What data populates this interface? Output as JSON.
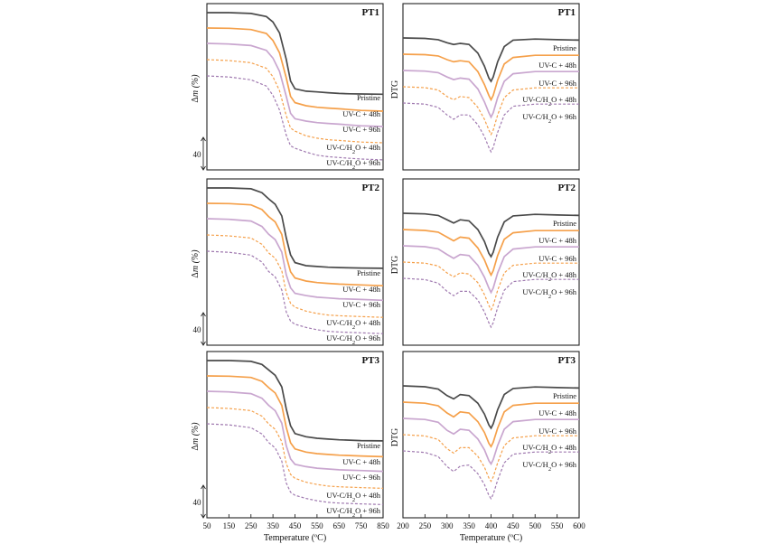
{
  "legend_series": [
    {
      "id": "pristine",
      "label_main": "Pristine",
      "label_sub": "",
      "label_tail": "",
      "color": "#4a4a4a",
      "dash": "solid"
    },
    {
      "id": "uvc48",
      "label_main": "UV-C + 48h",
      "label_sub": "",
      "label_tail": "",
      "color": "#f5a04a",
      "dash": "solid"
    },
    {
      "id": "uvc96",
      "label_main": "UV-C + 96h",
      "label_sub": "",
      "label_tail": "",
      "color": "#c9a6cf",
      "dash": "solid"
    },
    {
      "id": "uvch2o48",
      "label_main": "UV-C/H",
      "label_sub": "2",
      "label_tail": "O + 48h",
      "color": "#f5a04a",
      "dash": "dashed"
    },
    {
      "id": "uvch2o96",
      "label_main": "UV-C/H",
      "label_sub": "2",
      "label_tail": "O + 96h",
      "color": "#a07ab0",
      "dash": "dashed"
    }
  ],
  "tga_axis": {
    "ylabel_delta": "Δ",
    "ylabel_rest": "m (%)",
    "scale_bar_value": "40",
    "xlabel": "Temperature (ºC)",
    "xticks": [
      50,
      150,
      250,
      350,
      450,
      550,
      650,
      750,
      850
    ],
    "xlim": [
      50,
      850
    ]
  },
  "dtg_axis": {
    "ylabel": "DTG",
    "xlabel": "Temperature (ºC)",
    "xticks": [
      200,
      250,
      300,
      350,
      400,
      450,
      500,
      550,
      600
    ],
    "xlim": [
      200,
      600
    ]
  },
  "chart_data": [
    {
      "type": "line",
      "method": "TGA",
      "title": "PT1",
      "x": [
        50,
        150,
        250,
        320,
        350,
        380,
        410,
        430,
        450,
        500,
        550,
        600,
        650,
        700,
        750,
        850
      ],
      "series": [
        {
          "name": "Pristine",
          "values": [
            100,
            100,
            99.5,
            97.5,
            94,
            87,
            70,
            56,
            51,
            49.5,
            49,
            48.5,
            48,
            47.8,
            47.7,
            47.5
          ]
        },
        {
          "name": "UV-C + 48h",
          "values": [
            100,
            99.8,
            99,
            96.5,
            92,
            84,
            68,
            56,
            52,
            50,
            49,
            48.5,
            48,
            47.5,
            47,
            46.5
          ]
        },
        {
          "name": "UV-C + 96h",
          "values": [
            100,
            99.6,
            98.6,
            95.5,
            90.5,
            82,
            66,
            55,
            51.5,
            50,
            49,
            48.5,
            48,
            47.5,
            47,
            46.5
          ]
        },
        {
          "name": "UV-C/H2O + 48h",
          "values": [
            100,
            99.4,
            98,
            94.5,
            89,
            80,
            64,
            56,
            54,
            51,
            49.5,
            48.5,
            48,
            47.5,
            47,
            46.5
          ]
        },
        {
          "name": "UV-C/H2O + 96h",
          "values": [
            100,
            99.3,
            97.5,
            93.5,
            87.5,
            78,
            62,
            55,
            53.5,
            51,
            49,
            48,
            47.5,
            47,
            46.5,
            46
          ]
        }
      ]
    },
    {
      "type": "line",
      "method": "DTG",
      "title": "PT1",
      "x": [
        200,
        250,
        280,
        300,
        315,
        330,
        350,
        370,
        385,
        395,
        400,
        405,
        415,
        430,
        450,
        500,
        550,
        600
      ],
      "series": [
        {
          "name": "Pristine",
          "values": [
            0,
            -0.02,
            -0.08,
            -0.22,
            -0.3,
            -0.25,
            -0.3,
            -0.7,
            -1.3,
            -1.85,
            -2,
            -1.8,
            -1.1,
            -0.4,
            -0.1,
            -0.05,
            -0.08,
            -0.1
          ]
        },
        {
          "name": "UV-C + 48h",
          "values": [
            0,
            -0.02,
            -0.08,
            -0.25,
            -0.35,
            -0.3,
            -0.35,
            -0.8,
            -1.4,
            -1.9,
            -2.1,
            -1.9,
            -1.2,
            -0.45,
            -0.15,
            -0.05,
            -0.05,
            -0.05
          ]
        },
        {
          "name": "UV-C + 96h",
          "values": [
            0,
            -0.03,
            -0.1,
            -0.3,
            -0.42,
            -0.35,
            -0.4,
            -0.85,
            -1.45,
            -1.95,
            -2.15,
            -1.95,
            -1.25,
            -0.5,
            -0.15,
            -0.05,
            -0.05,
            -0.05
          ]
        },
        {
          "name": "UV-C/H2O + 48h",
          "values": [
            0,
            -0.04,
            -0.15,
            -0.45,
            -0.6,
            -0.45,
            -0.5,
            -0.95,
            -1.5,
            -2,
            -2.2,
            -2,
            -1.3,
            -0.5,
            -0.15,
            -0.05,
            -0.05,
            -0.05
          ]
        },
        {
          "name": "UV-C/H2O + 96h",
          "values": [
            0,
            -0.05,
            -0.2,
            -0.55,
            -0.75,
            -0.55,
            -0.55,
            -1,
            -1.55,
            -2.05,
            -2.25,
            -2.05,
            -1.35,
            -0.55,
            -0.15,
            -0.05,
            -0.05,
            -0.05
          ]
        }
      ]
    },
    {
      "type": "line",
      "method": "TGA",
      "title": "PT2",
      "x": [
        50,
        150,
        250,
        300,
        330,
        360,
        390,
        410,
        430,
        450,
        500,
        550,
        600,
        650,
        750,
        850
      ],
      "series": [
        {
          "name": "Pristine",
          "values": [
            100,
            100,
            99.5,
            97,
            93,
            89.5,
            82,
            68,
            57,
            52,
            50,
            49.5,
            49,
            48.8,
            48.5,
            48.3
          ]
        },
        {
          "name": "UV-C + 48h",
          "values": [
            100,
            99.8,
            99,
            96,
            91.5,
            88,
            80,
            66,
            56,
            52,
            50,
            49,
            48.5,
            48,
            47.5,
            47
          ]
        },
        {
          "name": "UV-C + 96h",
          "values": [
            100,
            99.6,
            98.5,
            95,
            90,
            86.5,
            78.5,
            64,
            55.5,
            52,
            50.5,
            49.5,
            49,
            48.5,
            48,
            47.5
          ]
        },
        {
          "name": "UV-C/H2O + 48h",
          "values": [
            100,
            99.4,
            98,
            94,
            88.5,
            85,
            77,
            63,
            56,
            53.5,
            51,
            49.5,
            48.5,
            48,
            47.5,
            47
          ]
        },
        {
          "name": "UV-C/H2O + 96h",
          "values": [
            100,
            99.3,
            97.5,
            93,
            87,
            83.5,
            75,
            61,
            55,
            53,
            51,
            49.5,
            48.5,
            48,
            47.5,
            47
          ]
        }
      ]
    },
    {
      "type": "line",
      "method": "DTG",
      "title": "PT2",
      "x": [
        200,
        250,
        280,
        300,
        315,
        330,
        350,
        370,
        385,
        395,
        400,
        405,
        415,
        430,
        450,
        500,
        550,
        600
      ],
      "series": [
        {
          "name": "Pristine",
          "values": [
            0,
            -0.03,
            -0.1,
            -0.3,
            -0.45,
            -0.3,
            -0.35,
            -0.75,
            -1.3,
            -1.85,
            -2,
            -1.8,
            -1.1,
            -0.4,
            -0.12,
            -0.05,
            -0.08,
            -0.1
          ]
        },
        {
          "name": "UV-C + 48h",
          "values": [
            0,
            -0.04,
            -0.12,
            -0.35,
            -0.52,
            -0.35,
            -0.4,
            -0.85,
            -1.4,
            -1.9,
            -2.1,
            -1.9,
            -1.2,
            -0.45,
            -0.15,
            -0.05,
            -0.05,
            -0.05
          ]
        },
        {
          "name": "UV-C + 96h",
          "values": [
            0,
            -0.04,
            -0.14,
            -0.4,
            -0.58,
            -0.4,
            -0.45,
            -0.9,
            -1.45,
            -1.95,
            -2.15,
            -1.95,
            -1.25,
            -0.5,
            -0.15,
            -0.05,
            -0.05,
            -0.05
          ]
        },
        {
          "name": "UV-C/H2O + 48h",
          "values": [
            0,
            -0.05,
            -0.18,
            -0.5,
            -0.68,
            -0.5,
            -0.55,
            -0.95,
            -1.5,
            -2,
            -2.2,
            -2,
            -1.3,
            -0.5,
            -0.15,
            -0.05,
            -0.05,
            -0.05
          ]
        },
        {
          "name": "UV-C/H2O + 96h",
          "values": [
            0,
            -0.06,
            -0.22,
            -0.6,
            -0.8,
            -0.6,
            -0.6,
            -1,
            -1.55,
            -2.05,
            -2.25,
            -2.05,
            -1.35,
            -0.55,
            -0.15,
            -0.05,
            -0.05,
            -0.05
          ]
        }
      ]
    },
    {
      "type": "line",
      "method": "TGA",
      "title": "PT3",
      "x": [
        50,
        150,
        250,
        300,
        330,
        360,
        390,
        410,
        430,
        450,
        500,
        550,
        600,
        650,
        750,
        850
      ],
      "series": [
        {
          "name": "Pristine",
          "values": [
            100,
            100,
            99.5,
            97.5,
            94,
            90.5,
            83,
            69,
            58,
            53,
            51,
            50,
            49.5,
            49,
            48.5,
            48.3
          ]
        },
        {
          "name": "UV-C + 48h",
          "values": [
            100,
            99.8,
            99,
            96.5,
            92.5,
            89,
            81,
            67,
            57,
            53,
            51,
            50,
            49.5,
            49,
            48.5,
            48
          ]
        },
        {
          "name": "UV-C + 96h",
          "values": [
            100,
            99.6,
            98.5,
            95.5,
            91,
            87.5,
            79.5,
            65,
            56.5,
            53,
            51.5,
            50.5,
            50,
            49.5,
            49,
            48.5
          ]
        },
        {
          "name": "UV-C/H2O + 48h",
          "values": [
            100,
            99.4,
            98,
            94.5,
            89.5,
            86,
            78,
            64,
            57,
            54.5,
            52,
            50.5,
            49.5,
            49,
            48.5,
            48
          ]
        },
        {
          "name": "UV-C/H2O + 96h",
          "values": [
            100,
            99.3,
            97.5,
            93.5,
            88,
            84.5,
            76,
            62,
            56,
            54,
            52,
            50.5,
            49.5,
            49,
            48.5,
            48
          ]
        }
      ]
    },
    {
      "type": "line",
      "method": "DTG",
      "title": "PT3",
      "x": [
        200,
        250,
        280,
        300,
        315,
        330,
        350,
        370,
        385,
        395,
        400,
        405,
        415,
        430,
        450,
        500,
        550,
        600
      ],
      "series": [
        {
          "name": "Pristine",
          "values": [
            0,
            -0.04,
            -0.15,
            -0.45,
            -0.6,
            -0.4,
            -0.45,
            -0.8,
            -1.3,
            -1.8,
            -1.95,
            -1.75,
            -1.1,
            -0.4,
            -0.12,
            -0.05,
            -0.08,
            -0.1
          ]
        },
        {
          "name": "UV-C + 48h",
          "values": [
            0,
            -0.05,
            -0.17,
            -0.5,
            -0.68,
            -0.45,
            -0.5,
            -0.9,
            -1.4,
            -1.9,
            -2.05,
            -1.85,
            -1.2,
            -0.45,
            -0.15,
            -0.05,
            -0.05,
            -0.05
          ]
        },
        {
          "name": "UV-C + 96h",
          "values": [
            0,
            -0.05,
            -0.18,
            -0.55,
            -0.72,
            -0.5,
            -0.55,
            -0.95,
            -1.45,
            -1.95,
            -2.1,
            -1.9,
            -1.25,
            -0.5,
            -0.15,
            -0.05,
            -0.05,
            -0.05
          ]
        },
        {
          "name": "UV-C/H2O + 48h",
          "values": [
            0,
            -0.06,
            -0.22,
            -0.65,
            -0.85,
            -0.6,
            -0.6,
            -1,
            -1.5,
            -2,
            -2.15,
            -1.95,
            -1.3,
            -0.5,
            -0.15,
            -0.05,
            -0.05,
            -0.05
          ]
        },
        {
          "name": "UV-C/H2O + 96h",
          "values": [
            0,
            -0.07,
            -0.26,
            -0.72,
            -0.95,
            -0.7,
            -0.65,
            -1.05,
            -1.55,
            -2.05,
            -2.2,
            -2,
            -1.35,
            -0.55,
            -0.15,
            -0.05,
            -0.05,
            -0.05
          ]
        }
      ]
    }
  ]
}
